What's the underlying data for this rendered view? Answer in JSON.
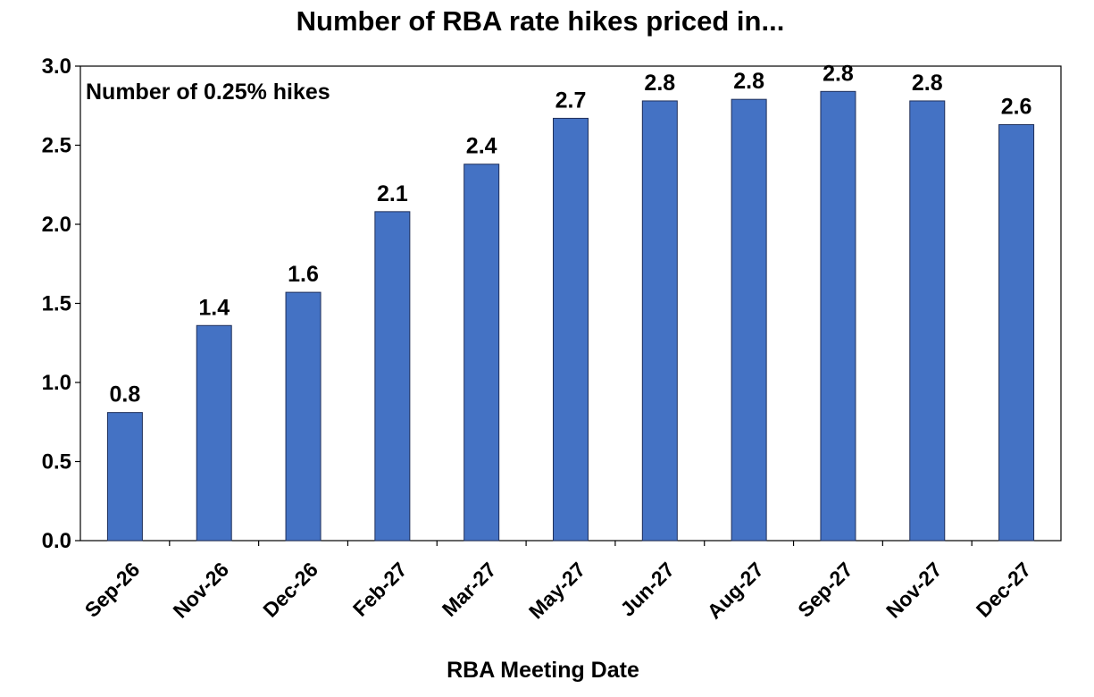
{
  "chart_data": {
    "type": "bar",
    "title": "Number of RBA rate hikes priced in...",
    "annotation": "Number of 0.25% hikes",
    "xlabel": "RBA Meeting Date",
    "ylabel": "",
    "ylim": [
      0,
      3
    ],
    "yticks": [
      "0.0",
      "0.5",
      "1.0",
      "1.5",
      "2.0",
      "2.5",
      "3.0"
    ],
    "categories": [
      "Sep-26",
      "Nov-26",
      "Dec-26",
      "Feb-27",
      "Mar-27",
      "May-27",
      "Jun-27",
      "Aug-27",
      "Sep-27",
      "Nov-27",
      "Dec-27"
    ],
    "values": [
      0.81,
      1.36,
      1.57,
      2.08,
      2.38,
      2.67,
      2.78,
      2.79,
      2.84,
      2.78,
      2.63
    ],
    "data_labels": [
      "0.8",
      "1.4",
      "1.6",
      "2.1",
      "2.4",
      "2.7",
      "2.8",
      "2.8",
      "2.8",
      "2.8",
      "2.6"
    ],
    "bar_color": "#4472C4",
    "grid": false,
    "legend": "none"
  }
}
